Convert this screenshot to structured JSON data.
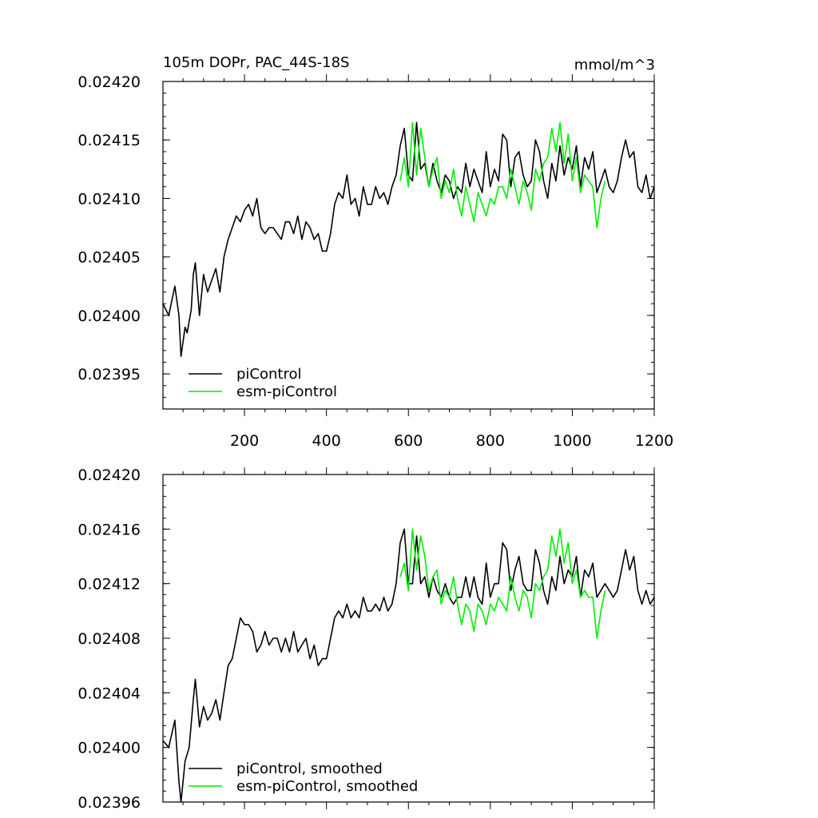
{
  "chart_data": [
    {
      "type": "line",
      "title": "105m DOPr, PAC_44S-18S",
      "units": "mmol/m^3",
      "xlim": [
        1,
        1200
      ],
      "ylim": [
        0.02392,
        0.0242
      ],
      "xticks": [
        200,
        400,
        600,
        800,
        1000,
        1200
      ],
      "xtick_labels": [
        "200",
        "400",
        "600",
        "800",
        "1000",
        "1200"
      ],
      "yticks": [
        0.02395,
        0.024,
        0.02405,
        0.0241,
        0.02415,
        0.0242
      ],
      "ytick_labels": [
        "0.02395",
        "0.02400",
        "0.02405",
        "0.02410",
        "0.02415",
        "0.02420"
      ],
      "legend_position": "bottom-left",
      "legend": [
        "piControl",
        "esm-piControl"
      ],
      "series": [
        {
          "name": "piControl",
          "color": "#000000",
          "x": [
            1,
            15,
            30,
            40,
            45,
            55,
            60,
            70,
            75,
            80,
            90,
            100,
            110,
            120,
            130,
            140,
            150,
            160,
            170,
            180,
            190,
            200,
            210,
            220,
            230,
            240,
            250,
            260,
            270,
            280,
            290,
            300,
            310,
            320,
            330,
            340,
            350,
            360,
            370,
            380,
            390,
            400,
            410,
            420,
            430,
            440,
            450,
            460,
            470,
            480,
            490,
            500,
            510,
            520,
            530,
            540,
            550,
            560,
            570,
            580,
            590,
            600,
            610,
            620,
            630,
            640,
            650,
            660,
            670,
            680,
            690,
            700,
            710,
            720,
            730,
            740,
            750,
            760,
            770,
            780,
            790,
            800,
            810,
            820,
            830,
            840,
            850,
            860,
            870,
            880,
            890,
            900,
            910,
            920,
            930,
            940,
            950,
            960,
            970,
            980,
            990,
            1000,
            1010,
            1020,
            1030,
            1040,
            1050,
            1060,
            1070,
            1080,
            1090,
            1100,
            1110,
            1120,
            1130,
            1140,
            1150,
            1160,
            1170,
            1180,
            1190,
            1200
          ],
          "values": [
            0.02401,
            0.024,
            0.024025,
            0.024,
            0.023965,
            0.02399,
            0.023985,
            0.024005,
            0.024035,
            0.024045,
            0.024,
            0.024035,
            0.02402,
            0.02403,
            0.02404,
            0.02402,
            0.02405,
            0.024065,
            0.024075,
            0.024085,
            0.02408,
            0.02409,
            0.024095,
            0.024085,
            0.0241,
            0.024075,
            0.02407,
            0.024075,
            0.024075,
            0.02407,
            0.024065,
            0.02408,
            0.02408,
            0.02407,
            0.024085,
            0.024065,
            0.02408,
            0.024075,
            0.024065,
            0.02407,
            0.024055,
            0.024055,
            0.02407,
            0.024095,
            0.024105,
            0.0241,
            0.02412,
            0.024095,
            0.0241,
            0.024085,
            0.02411,
            0.024095,
            0.024095,
            0.02411,
            0.0241,
            0.024105,
            0.024095,
            0.02411,
            0.02412,
            0.024145,
            0.02416,
            0.02412,
            0.024115,
            0.024165,
            0.024125,
            0.02413,
            0.02411,
            0.02413,
            0.024115,
            0.024105,
            0.02412,
            0.024115,
            0.0241,
            0.02411,
            0.024105,
            0.02413,
            0.02411,
            0.024125,
            0.024115,
            0.024105,
            0.02414,
            0.02411,
            0.024125,
            0.024115,
            0.024155,
            0.02415,
            0.02411,
            0.024135,
            0.02414,
            0.02412,
            0.02411,
            0.024115,
            0.02415,
            0.02414,
            0.024115,
            0.0241,
            0.02413,
            0.024115,
            0.024145,
            0.02412,
            0.024135,
            0.024125,
            0.024145,
            0.02411,
            0.024135,
            0.024125,
            0.02414,
            0.024105,
            0.024115,
            0.024125,
            0.02411,
            0.024105,
            0.024115,
            0.024135,
            0.02415,
            0.024135,
            0.02414,
            0.02411,
            0.024105,
            0.02412,
            0.0241,
            0.02411
          ]
        },
        {
          "name": "esm-piControl",
          "color": "#00ee00",
          "x": [
            580,
            590,
            600,
            610,
            620,
            630,
            640,
            650,
            660,
            670,
            680,
            690,
            700,
            710,
            720,
            730,
            740,
            750,
            760,
            770,
            780,
            790,
            800,
            810,
            820,
            830,
            840,
            850,
            860,
            870,
            880,
            890,
            900,
            910,
            920,
            930,
            940,
            950,
            960,
            970,
            980,
            990,
            1000,
            1010,
            1020,
            1030,
            1040,
            1050,
            1060,
            1070,
            1080
          ],
          "values": [
            0.024115,
            0.024135,
            0.02411,
            0.024165,
            0.02412,
            0.02416,
            0.024135,
            0.02411,
            0.024125,
            0.024135,
            0.0241,
            0.024115,
            0.024105,
            0.024125,
            0.0241,
            0.024085,
            0.02411,
            0.024095,
            0.02408,
            0.024105,
            0.024095,
            0.024085,
            0.0241,
            0.024095,
            0.02411,
            0.02411,
            0.0241,
            0.024125,
            0.02411,
            0.024095,
            0.024115,
            0.024105,
            0.02409,
            0.024125,
            0.024115,
            0.02413,
            0.024135,
            0.02416,
            0.02414,
            0.024165,
            0.02413,
            0.024155,
            0.024115,
            0.024135,
            0.024105,
            0.02412,
            0.024115,
            0.02411,
            0.024075,
            0.0241,
            0.024115
          ]
        }
      ]
    },
    {
      "type": "line",
      "title": "",
      "xlim": [
        1,
        1200
      ],
      "ylim": [
        0.02396,
        0.0242
      ],
      "xticks": [
        200,
        400,
        600,
        800,
        1000,
        1200
      ],
      "xtick_labels": [],
      "yticks": [
        0.02396,
        0.024,
        0.02404,
        0.02408,
        0.02412,
        0.02416,
        0.0242
      ],
      "ytick_labels": [
        "0.02396",
        "0.02400",
        "0.02404",
        "0.02408",
        "0.02412",
        "0.02416",
        "0.02420"
      ],
      "legend_position": "bottom-left",
      "legend": [
        "piControl, smoothed",
        "esm-piControl, smoothed"
      ],
      "series": [
        {
          "name": "piControl, smoothed",
          "color": "#000000",
          "x": [
            1,
            15,
            30,
            40,
            45,
            55,
            65,
            75,
            80,
            90,
            100,
            110,
            120,
            130,
            140,
            150,
            160,
            170,
            180,
            190,
            200,
            210,
            220,
            230,
            240,
            250,
            260,
            270,
            280,
            290,
            300,
            310,
            320,
            330,
            340,
            350,
            360,
            370,
            380,
            390,
            400,
            410,
            420,
            430,
            440,
            450,
            460,
            470,
            480,
            490,
            500,
            510,
            520,
            530,
            540,
            550,
            560,
            570,
            580,
            590,
            600,
            610,
            620,
            630,
            640,
            650,
            660,
            670,
            680,
            690,
            700,
            710,
            720,
            730,
            740,
            750,
            760,
            770,
            780,
            790,
            800,
            810,
            820,
            830,
            840,
            850,
            860,
            870,
            880,
            890,
            900,
            910,
            920,
            930,
            940,
            950,
            960,
            970,
            980,
            990,
            1000,
            1010,
            1020,
            1030,
            1040,
            1050,
            1060,
            1070,
            1080,
            1090,
            1100,
            1110,
            1120,
            1130,
            1140,
            1150,
            1160,
            1170,
            1180,
            1190,
            1200
          ],
          "values": [
            0.024005,
            0.024,
            0.02402,
            0.023975,
            0.02396,
            0.02399,
            0.024,
            0.024035,
            0.02405,
            0.024015,
            0.02403,
            0.02402,
            0.024025,
            0.024035,
            0.02402,
            0.02404,
            0.02406,
            0.024065,
            0.02408,
            0.024095,
            0.02409,
            0.02409,
            0.024085,
            0.02407,
            0.024075,
            0.024085,
            0.024075,
            0.02408,
            0.02408,
            0.02407,
            0.02408,
            0.02407,
            0.024085,
            0.02407,
            0.024075,
            0.02408,
            0.024065,
            0.024075,
            0.02406,
            0.024065,
            0.024065,
            0.02408,
            0.024095,
            0.0241,
            0.024095,
            0.024105,
            0.024095,
            0.0241,
            0.024095,
            0.02411,
            0.0241,
            0.0241,
            0.024105,
            0.0241,
            0.02411,
            0.0241,
            0.024105,
            0.02412,
            0.02415,
            0.02416,
            0.02412,
            0.02412,
            0.024155,
            0.02412,
            0.024125,
            0.02411,
            0.024125,
            0.024115,
            0.02411,
            0.02412,
            0.02411,
            0.024105,
            0.02411,
            0.02411,
            0.024125,
            0.02411,
            0.024125,
            0.02411,
            0.024105,
            0.024135,
            0.02411,
            0.02412,
            0.02412,
            0.02415,
            0.024145,
            0.024115,
            0.02413,
            0.02414,
            0.02412,
            0.024115,
            0.024115,
            0.024145,
            0.024135,
            0.024115,
            0.024105,
            0.024125,
            0.024115,
            0.02414,
            0.02412,
            0.02413,
            0.024125,
            0.02414,
            0.02411,
            0.02413,
            0.024125,
            0.024135,
            0.02411,
            0.024115,
            0.02412,
            0.024115,
            0.02411,
            0.024115,
            0.02413,
            0.024145,
            0.02413,
            0.02414,
            0.024115,
            0.024105,
            0.024115,
            0.024105,
            0.02411
          ]
        },
        {
          "name": "esm-piControl, smoothed",
          "color": "#00ee00",
          "x": [
            580,
            590,
            600,
            610,
            620,
            630,
            640,
            650,
            660,
            670,
            680,
            690,
            700,
            710,
            720,
            730,
            740,
            750,
            760,
            770,
            780,
            790,
            800,
            810,
            820,
            830,
            840,
            850,
            860,
            870,
            880,
            890,
            900,
            910,
            920,
            930,
            940,
            950,
            960,
            970,
            980,
            990,
            1000,
            1010,
            1020,
            1030,
            1040,
            1050,
            1060,
            1070,
            1080
          ],
          "values": [
            0.024125,
            0.024135,
            0.024115,
            0.02416,
            0.02413,
            0.024155,
            0.02414,
            0.024115,
            0.024125,
            0.02413,
            0.024105,
            0.024115,
            0.02411,
            0.024125,
            0.024105,
            0.02409,
            0.024105,
            0.0241,
            0.024085,
            0.024105,
            0.0241,
            0.02409,
            0.024105,
            0.0241,
            0.02411,
            0.024105,
            0.0241,
            0.024125,
            0.02411,
            0.0241,
            0.024115,
            0.02411,
            0.024095,
            0.02412,
            0.024115,
            0.024125,
            0.02413,
            0.024155,
            0.02414,
            0.02416,
            0.024135,
            0.02415,
            0.02412,
            0.02413,
            0.02411,
            0.024115,
            0.02411,
            0.02411,
            0.02408,
            0.0241,
            0.024115
          ]
        }
      ]
    }
  ]
}
